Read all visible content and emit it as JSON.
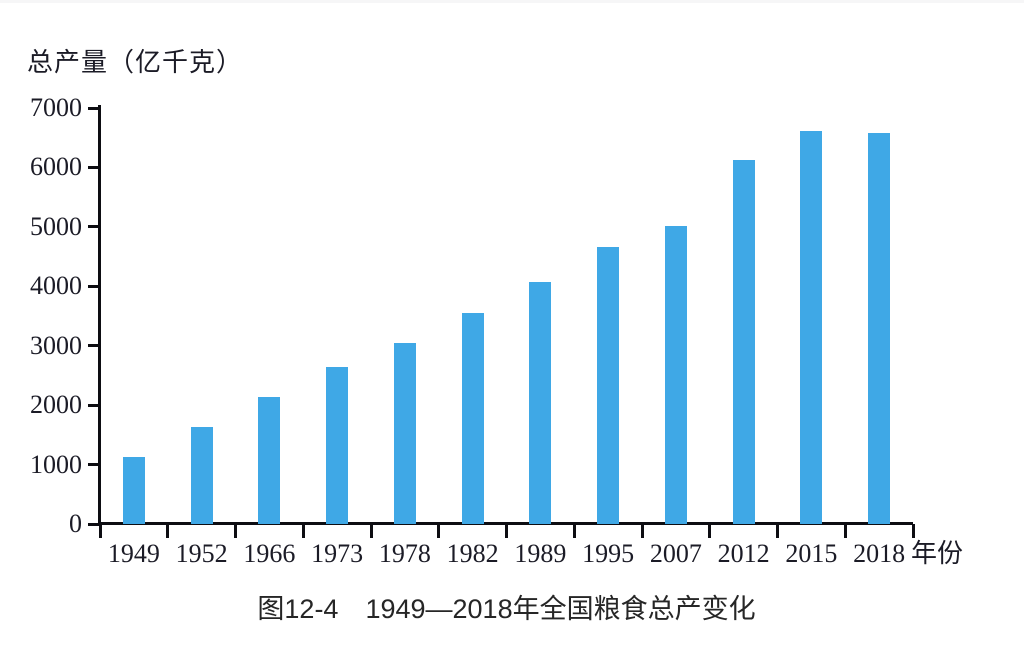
{
  "chart_data": {
    "type": "bar",
    "title": "图12-4　1949—2018年全国粮食总产变化",
    "ylabel": "总产量（亿千克）",
    "xlabel": "",
    "x_unit_label": "年份",
    "categories": [
      "1949",
      "1952",
      "1966",
      "1973",
      "1978",
      "1982",
      "1989",
      "1995",
      "2007",
      "2012",
      "2015",
      "2018"
    ],
    "values": [
      1132,
      1639,
      2140,
      2649,
      3048,
      3545,
      4076,
      4666,
      5016,
      6122,
      6606,
      6579
    ],
    "yticks": [
      0,
      1000,
      2000,
      3000,
      4000,
      5000,
      6000,
      7000
    ],
    "ylim": [
      0,
      7000
    ],
    "grid": false,
    "legend_position": "none",
    "bar_color": "#3fa8e6",
    "axis_color": "#0d0d12",
    "label_color": "#1b1b26"
  },
  "caption": {
    "figure_label": "图12-4",
    "title": "1949—2018年全国粮食总产变化"
  }
}
